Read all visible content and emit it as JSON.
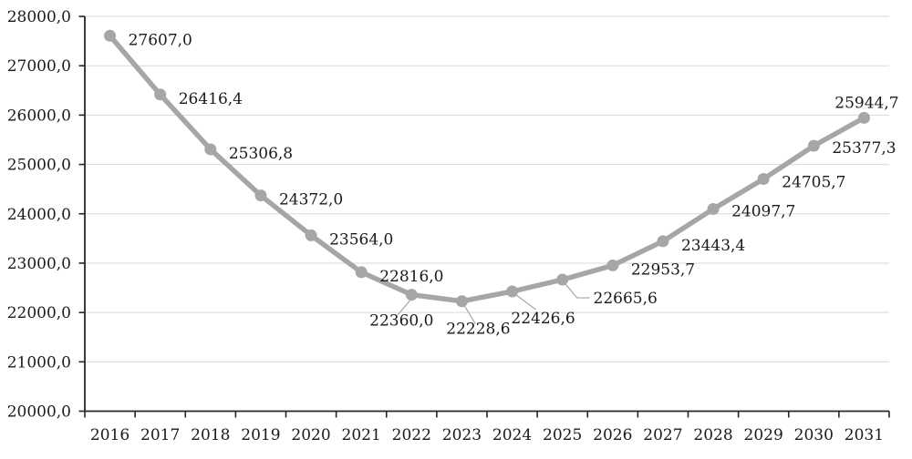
{
  "chart_data": {
    "type": "line",
    "title": "",
    "xlabel": "",
    "ylabel": "",
    "categories": [
      "2016",
      "2017",
      "2018",
      "2019",
      "2020",
      "2021",
      "2022",
      "2023",
      "2024",
      "2025",
      "2026",
      "2027",
      "2028",
      "2029",
      "2030",
      "2031"
    ],
    "series": [
      {
        "name": "series-1",
        "values": [
          27607.0,
          26416.4,
          25306.8,
          24372.0,
          23564.0,
          22816.0,
          22360.0,
          22228.6,
          22426.6,
          22665.6,
          22953.7,
          23443.4,
          24097.7,
          24705.7,
          25377.3,
          25944.7
        ],
        "point_labels": [
          "27607,0",
          "26416,4",
          "25306,8",
          "24372,0",
          "23564,0",
          "22816,0",
          "22360,0",
          "22228,6",
          "22426,6",
          "22665,6",
          "22953,7",
          "23443,4",
          "24097,7",
          "24705,7",
          "25377,3",
          "25944,7"
        ]
      }
    ],
    "ylim": [
      20000,
      28000
    ],
    "y_tick_step": 1000,
    "y_tick_labels": [
      "28000,0",
      "27000,0",
      "26000,0",
      "25000,0",
      "24000,0",
      "23000,0",
      "22000,0",
      "21000,0",
      "20000,0"
    ],
    "grid": true,
    "legend_position": "none",
    "decimal_separator": ",",
    "colors": {
      "line": "#a6a6a6",
      "marker": "#a6a6a6",
      "leader_line": "#a6a6a6",
      "gridline": "#d9d9d9",
      "axis": "#262626",
      "text": "#1a1a1a",
      "background": "#ffffff"
    }
  }
}
